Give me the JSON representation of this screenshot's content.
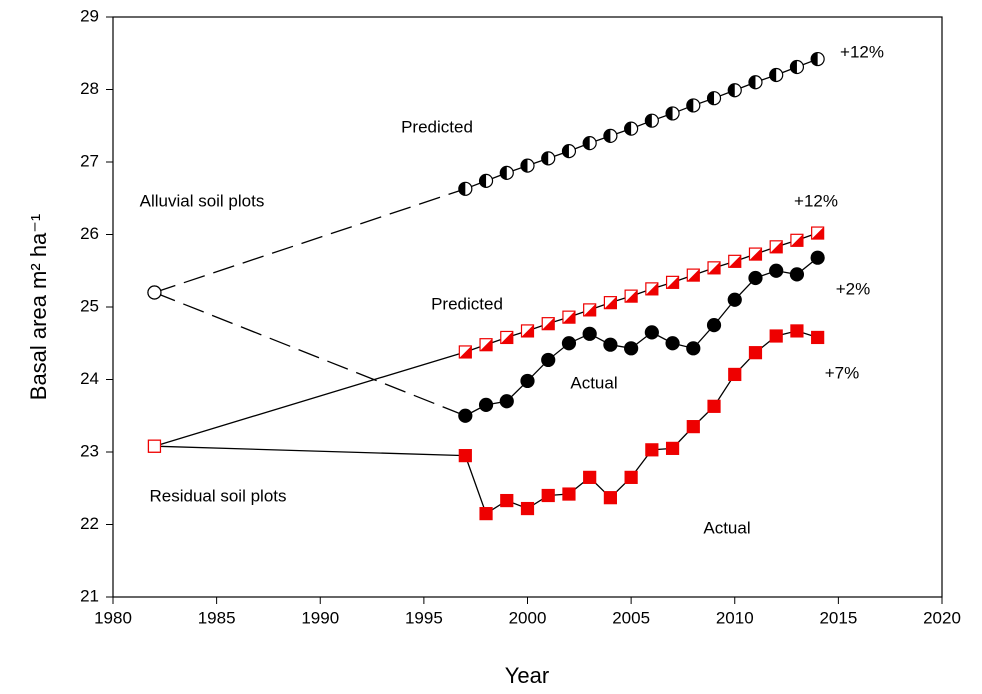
{
  "chart_data": {
    "type": "line",
    "xlabel": "Year",
    "ylabel": "Basal area m² ha⁻¹",
    "x": [
      1982,
      1997,
      1998,
      1999,
      2000,
      2001,
      2002,
      2003,
      2004,
      2005,
      2006,
      2007,
      2008,
      2009,
      2010,
      2011,
      2012,
      2013,
      2014
    ],
    "series": [
      {
        "group": "Alluvial soil plots",
        "kind": "Predicted",
        "color": "#000000",
        "marker": "half-circle",
        "first_segment": "dashed",
        "values": [
          25.2,
          26.63,
          26.74,
          26.85,
          26.95,
          27.05,
          27.15,
          27.26,
          27.36,
          27.46,
          27.57,
          27.67,
          27.78,
          27.88,
          27.99,
          28.1,
          28.2,
          28.31,
          28.42
        ]
      },
      {
        "group": "Alluvial soil plots",
        "kind": "Actual",
        "color": "#000000",
        "marker": "circle",
        "first_segment": "dashed",
        "values": [
          25.2,
          23.5,
          23.65,
          23.7,
          23.98,
          24.27,
          24.5,
          24.63,
          24.48,
          24.43,
          24.65,
          24.5,
          24.43,
          24.75,
          25.1,
          25.4,
          25.5,
          25.45,
          25.68
        ]
      },
      {
        "group": "Residual soil plots",
        "kind": "Predicted",
        "color": "#ee0000",
        "marker": "half-square",
        "first_segment": "solid",
        "values": [
          23.08,
          24.38,
          24.48,
          24.58,
          24.67,
          24.77,
          24.86,
          24.96,
          25.06,
          25.15,
          25.25,
          25.34,
          25.44,
          25.54,
          25.63,
          25.73,
          25.83,
          25.92,
          26.02
        ]
      },
      {
        "group": "Residual soil plots",
        "kind": "Actual",
        "color": "#ee0000",
        "marker": "square",
        "first_segment": "solid",
        "values": [
          23.08,
          22.95,
          22.15,
          22.33,
          22.22,
          22.4,
          22.42,
          22.65,
          22.37,
          22.65,
          23.03,
          23.05,
          23.35,
          23.63,
          24.07,
          24.37,
          24.6,
          24.67,
          24.58
        ]
      }
    ],
    "annotations": [
      "Predicted",
      "Alluvial soil plots",
      "+12%",
      "+12%",
      "Predicted",
      "+2%",
      "Actual",
      "+7%",
      "Residual soil plots",
      "Actual"
    ],
    "xlim": [
      1980,
      2020
    ],
    "xticks": [
      1980,
      1985,
      1990,
      1995,
      2000,
      2005,
      2010,
      2015,
      2020
    ],
    "ylim": [
      21,
      29
    ],
    "yticks": [
      21,
      22,
      23,
      24,
      25,
      26,
      27,
      28,
      29
    ],
    "grid": false
  }
}
